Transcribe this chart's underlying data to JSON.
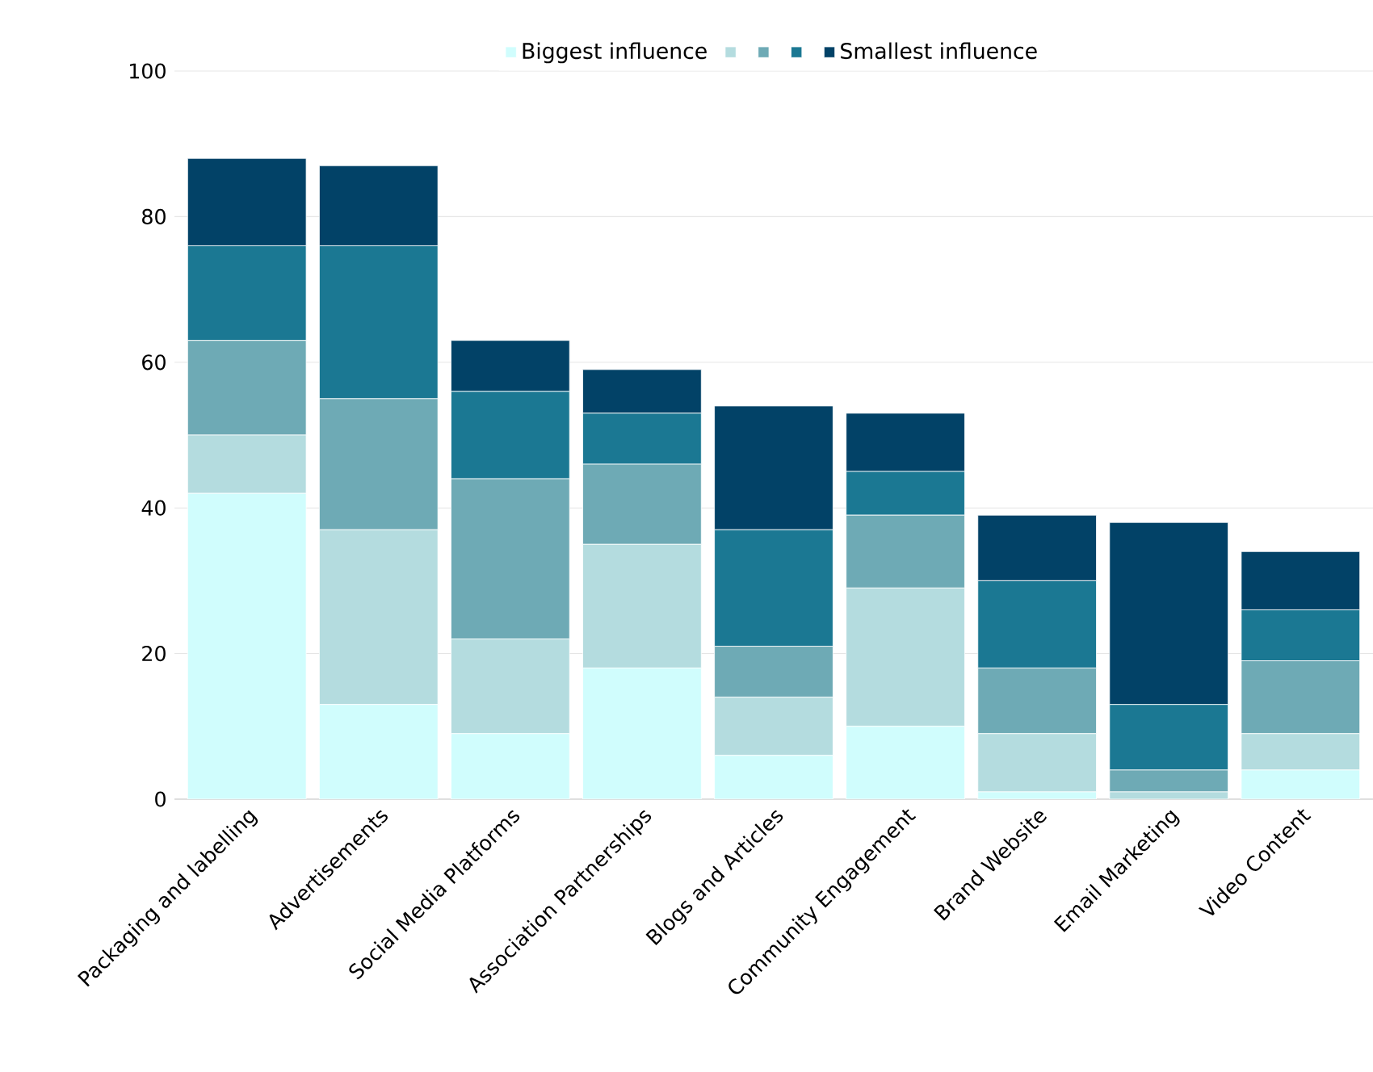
{
  "chart_data": {
    "type": "bar",
    "stacked": true,
    "categories": [
      "Packaging and labelling",
      "Advertisements",
      "Social Media Platforms",
      "Association Partnerships",
      "Blogs and Articles",
      "Community Engagement",
      "Brand Website",
      "Email Marketing",
      "Video Content"
    ],
    "series": [
      {
        "name": "Biggest influence",
        "color": "#d0fdfd",
        "values": [
          42,
          13,
          9,
          18,
          6,
          10,
          1,
          0,
          4
        ]
      },
      {
        "color": "#b4dcdf",
        "values": [
          8,
          24,
          13,
          17,
          8,
          19,
          8,
          1,
          5
        ]
      },
      {
        "color": "#6eaab5",
        "values": [
          13,
          18,
          22,
          11,
          7,
          10,
          9,
          3,
          10
        ]
      },
      {
        "color": "#1b7893",
        "values": [
          13,
          21,
          12,
          7,
          16,
          6,
          12,
          9,
          7
        ]
      },
      {
        "name": "Smallest influence",
        "color": "#024267",
        "values": [
          12,
          11,
          7,
          6,
          17,
          8,
          9,
          25,
          8
        ]
      }
    ],
    "ylim": [
      0,
      100
    ],
    "yticks": [
      0,
      20,
      40,
      60,
      80,
      100
    ],
    "grid": "y",
    "legend": "top"
  }
}
